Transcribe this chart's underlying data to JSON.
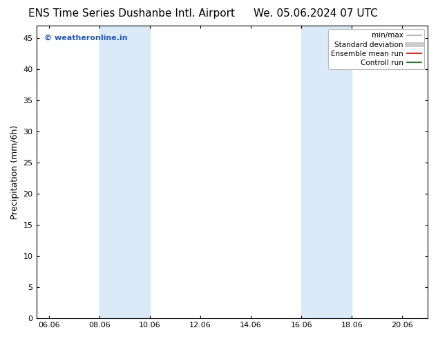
{
  "title_left": "ENS Time Series Dushanbe Intl. Airport",
  "title_right": "We. 05.06.2024 07 UTC",
  "ylabel": "Precipitation (mm/6h)",
  "xlim_start": 5.5,
  "xlim_end": 21.0,
  "ylim_bottom": 0,
  "ylim_top": 47,
  "yticks": [
    0,
    5,
    10,
    15,
    20,
    25,
    30,
    35,
    40,
    45
  ],
  "xtick_labels": [
    "06.06",
    "08.06",
    "10.06",
    "12.06",
    "14.06",
    "16.06",
    "18.06",
    "20.06"
  ],
  "xtick_positions": [
    6,
    8,
    10,
    12,
    14,
    16,
    18,
    20
  ],
  "shaded_bands": [
    {
      "x_start": 8.0,
      "x_end": 10.0
    },
    {
      "x_start": 16.0,
      "x_end": 18.0
    }
  ],
  "shaded_color": "#daeaf8",
  "background_color": "#ffffff",
  "watermark_text": "© weatheronline.in",
  "watermark_color": "#2255cc",
  "legend_entries": [
    {
      "label": "min/max",
      "color": "#aaaaaa",
      "lw": 1.2,
      "style": "solid"
    },
    {
      "label": "Standard deviation",
      "color": "#cccccc",
      "lw": 5,
      "style": "solid"
    },
    {
      "label": "Ensemble mean run",
      "color": "#dd0000",
      "lw": 1.2,
      "style": "solid"
    },
    {
      "label": "Controll run",
      "color": "#006600",
      "lw": 1.2,
      "style": "solid"
    }
  ],
  "title_fontsize": 11,
  "axis_label_fontsize": 9,
  "tick_fontsize": 8,
  "legend_fontsize": 7.5
}
